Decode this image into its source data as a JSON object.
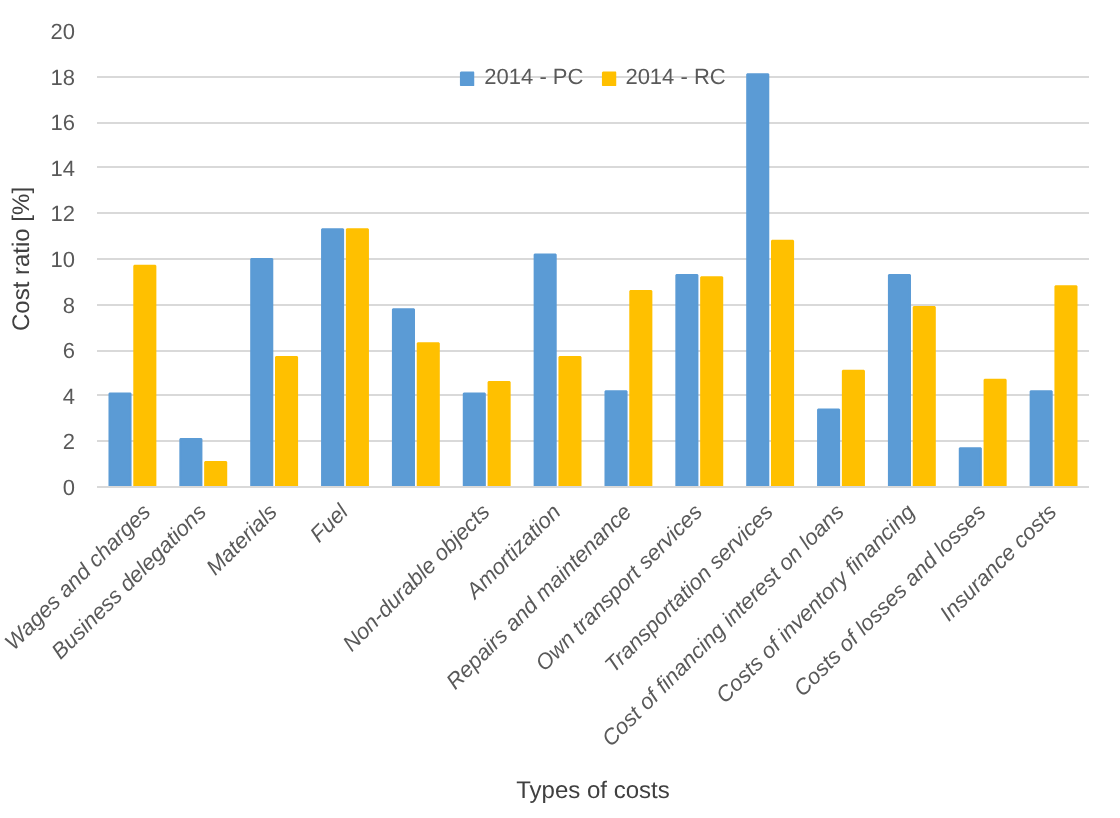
{
  "chart_data": {
    "type": "bar",
    "xlabel": "Types of costs",
    "ylabel": "Cost ratio [%]",
    "categories": [
      "Wages and charges",
      "Business delegations",
      "Materials",
      "Fuel",
      null,
      "Non-durable objects",
      "Amortization",
      "Repairs and maintenance",
      "Own transport services",
      "Transportation services",
      "Cost of financing interest on loans",
      "Costs of inventory financing",
      "Costs of losses and losses",
      "Insurance costs"
    ],
    "series": [
      {
        "name": "2014 - PC",
        "color": "#5b9bd5",
        "values": [
          4.1,
          2.1,
          10.0,
          11.3,
          7.8,
          4.1,
          10.2,
          4.2,
          9.3,
          18.1,
          3.4,
          9.3,
          1.7,
          4.2
        ]
      },
      {
        "name": "2014 - RC",
        "color": "#ffc000",
        "values": [
          9.7,
          1.1,
          5.7,
          11.3,
          6.3,
          4.6,
          5.7,
          8.6,
          9.2,
          10.8,
          5.1,
          7.9,
          4.7,
          8.8
        ]
      }
    ],
    "ylim": [
      0,
      20
    ],
    "yticks": [
      0,
      2,
      4,
      6,
      8,
      10,
      12,
      14,
      16,
      18,
      20
    ],
    "grid": "y",
    "legend": "top"
  }
}
